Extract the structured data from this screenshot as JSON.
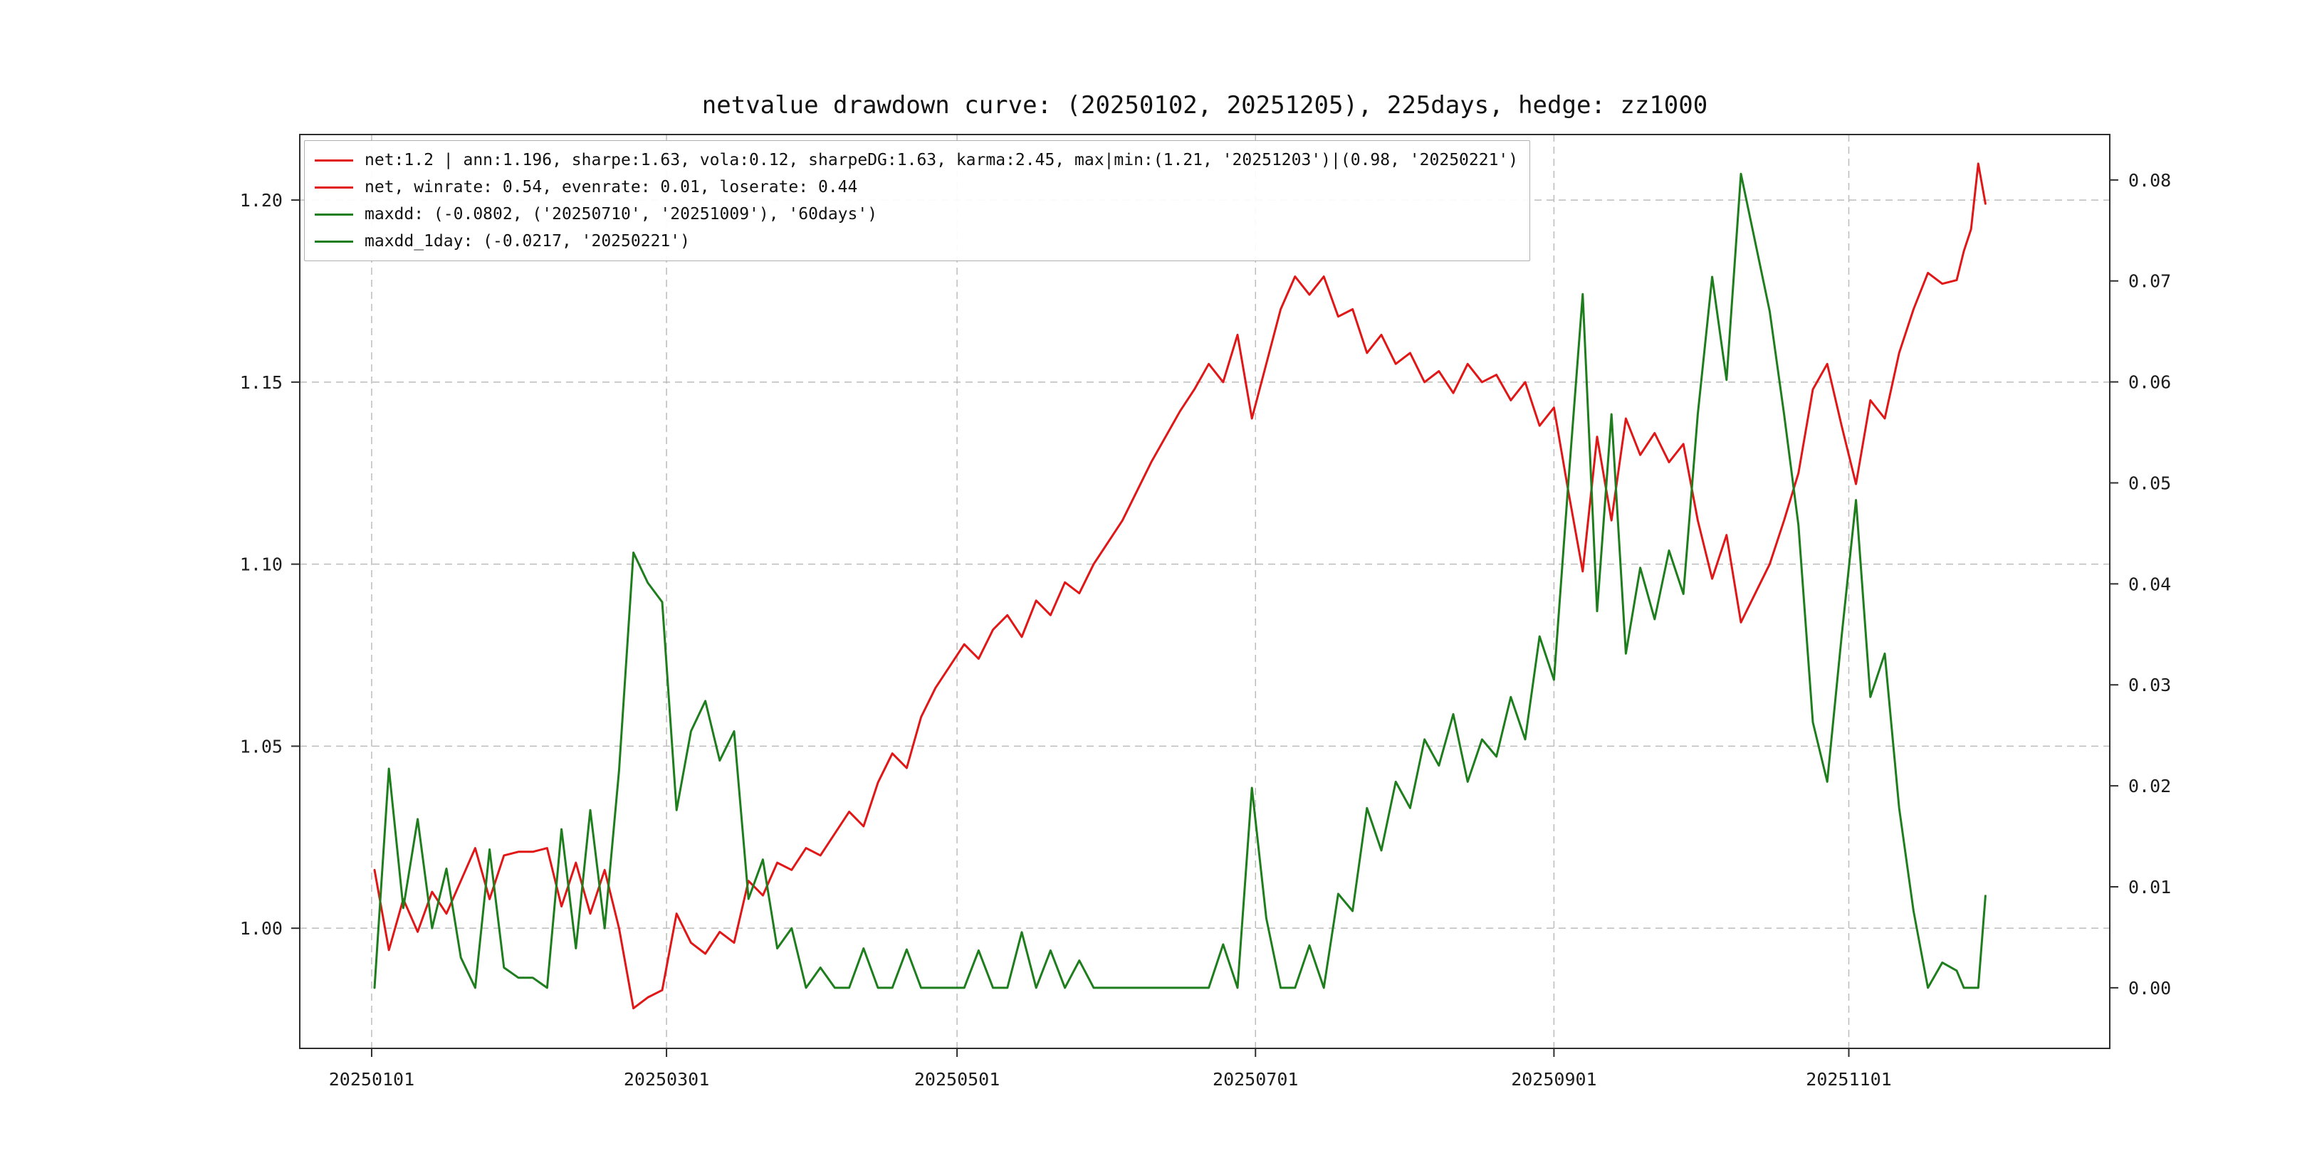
{
  "figure": {
    "title": "netvalue drawdown curve: (20250102, 20251205), 225days, hedge: zz1000",
    "background": "#ffffff"
  },
  "legend": {
    "entries": [
      {
        "label": "net:1.2 | ann:1.196, sharpe:1.63, vola:0.12, sharpeDG:1.63, karma:2.45, max|min:(1.21, '20251203')|(0.98, '20250221')",
        "color": "#e11717"
      },
      {
        "label": "net, winrate: 0.54, evenrate: 0.01, loserate: 0.44",
        "color": "#e11717"
      },
      {
        "label": "maxdd: (-0.0802, ('20250710', '20251009'), '60days')",
        "color": "#1e7e1e"
      },
      {
        "label": "maxdd_1day: (-0.0217, '20250221')",
        "color": "#1e7e1e"
      }
    ]
  },
  "chart_data": {
    "type": "line",
    "title": "netvalue drawdown curve: (20250102, 20251205), 225days, hedge: zz1000",
    "start_date": "20250102",
    "end_date": "20251205",
    "total_trading_days": 225,
    "hedge": "zz1000",
    "grid": "dashed",
    "legend_position": "upper-left",
    "x_axis": {
      "tick_labels": [
        "20250101",
        "20250301",
        "20250501",
        "20250701",
        "20250901",
        "20251101"
      ],
      "tick_days": [
        -0.4,
        40.6,
        81,
        122.5,
        164,
        205
      ]
    },
    "left_axis": {
      "ticks": [
        1.0,
        1.05,
        1.1,
        1.15,
        1.2
      ],
      "tick_labels": [
        "1.00",
        "1.05",
        "1.10",
        "1.15",
        "1.20"
      ],
      "range": [
        0.967,
        1.218
      ]
    },
    "right_axis": {
      "ticks": [
        0.0,
        0.01,
        0.02,
        0.03,
        0.04,
        0.05,
        0.06,
        0.07,
        0.08
      ],
      "tick_labels": [
        "0.00",
        "0.01",
        "0.02",
        "0.03",
        "0.04",
        "0.05",
        "0.06",
        "0.07",
        "0.08"
      ],
      "range": [
        -0.006,
        0.0845
      ]
    },
    "series": [
      {
        "name": "net",
        "axis": "left",
        "color": "#e11717",
        "stats": {
          "net": 1.2,
          "ann": 1.196,
          "sharpe": 1.63,
          "vola": 0.12,
          "sharpeDG": 1.63,
          "karma": 2.45,
          "max": [
            1.21,
            "20251203"
          ],
          "min": [
            0.98,
            "20250221"
          ],
          "winrate": 0.54,
          "evenrate": 0.01,
          "loserate": 0.44
        },
        "points": [
          [
            0,
            1.016
          ],
          [
            2,
            0.994
          ],
          [
            4,
            1.008
          ],
          [
            6,
            0.999
          ],
          [
            8,
            1.01
          ],
          [
            10,
            1.004
          ],
          [
            12,
            1.013
          ],
          [
            14,
            1.022
          ],
          [
            16,
            1.008
          ],
          [
            18,
            1.02
          ],
          [
            20,
            1.021
          ],
          [
            22,
            1.021
          ],
          [
            24,
            1.022
          ],
          [
            26,
            1.006
          ],
          [
            28,
            1.018
          ],
          [
            30,
            1.004
          ],
          [
            32,
            1.016
          ],
          [
            34,
            1.0
          ],
          [
            36,
            0.978
          ],
          [
            38,
            0.981
          ],
          [
            40,
            0.983
          ],
          [
            42,
            1.004
          ],
          [
            44,
            0.996
          ],
          [
            46,
            0.993
          ],
          [
            48,
            0.999
          ],
          [
            50,
            0.996
          ],
          [
            52,
            1.013
          ],
          [
            54,
            1.009
          ],
          [
            56,
            1.018
          ],
          [
            58,
            1.016
          ],
          [
            60,
            1.022
          ],
          [
            62,
            1.02
          ],
          [
            64,
            1.026
          ],
          [
            66,
            1.032
          ],
          [
            68,
            1.028
          ],
          [
            70,
            1.04
          ],
          [
            72,
            1.048
          ],
          [
            74,
            1.044
          ],
          [
            76,
            1.058
          ],
          [
            78,
            1.066
          ],
          [
            80,
            1.072
          ],
          [
            82,
            1.078
          ],
          [
            84,
            1.074
          ],
          [
            86,
            1.082
          ],
          [
            88,
            1.086
          ],
          [
            90,
            1.08
          ],
          [
            92,
            1.09
          ],
          [
            94,
            1.086
          ],
          [
            96,
            1.095
          ],
          [
            98,
            1.092
          ],
          [
            100,
            1.1
          ],
          [
            102,
            1.106
          ],
          [
            104,
            1.112
          ],
          [
            106,
            1.12
          ],
          [
            108,
            1.128
          ],
          [
            110,
            1.135
          ],
          [
            112,
            1.142
          ],
          [
            114,
            1.148
          ],
          [
            116,
            1.155
          ],
          [
            118,
            1.15
          ],
          [
            120,
            1.163
          ],
          [
            122,
            1.14
          ],
          [
            124,
            1.155
          ],
          [
            126,
            1.17
          ],
          [
            128,
            1.179
          ],
          [
            130,
            1.174
          ],
          [
            132,
            1.179
          ],
          [
            134,
            1.168
          ],
          [
            136,
            1.17
          ],
          [
            138,
            1.158
          ],
          [
            140,
            1.163
          ],
          [
            142,
            1.155
          ],
          [
            144,
            1.158
          ],
          [
            146,
            1.15
          ],
          [
            148,
            1.153
          ],
          [
            150,
            1.147
          ],
          [
            152,
            1.155
          ],
          [
            154,
            1.15
          ],
          [
            156,
            1.152
          ],
          [
            158,
            1.145
          ],
          [
            160,
            1.15
          ],
          [
            162,
            1.138
          ],
          [
            164,
            1.143
          ],
          [
            166,
            1.12
          ],
          [
            168,
            1.098
          ],
          [
            170,
            1.135
          ],
          [
            172,
            1.112
          ],
          [
            174,
            1.14
          ],
          [
            176,
            1.13
          ],
          [
            178,
            1.136
          ],
          [
            180,
            1.128
          ],
          [
            182,
            1.133
          ],
          [
            184,
            1.112
          ],
          [
            186,
            1.096
          ],
          [
            188,
            1.108
          ],
          [
            190,
            1.084
          ],
          [
            192,
            1.092
          ],
          [
            194,
            1.1
          ],
          [
            196,
            1.112
          ],
          [
            198,
            1.125
          ],
          [
            200,
            1.148
          ],
          [
            202,
            1.155
          ],
          [
            204,
            1.138
          ],
          [
            206,
            1.122
          ],
          [
            208,
            1.145
          ],
          [
            210,
            1.14
          ],
          [
            212,
            1.158
          ],
          [
            214,
            1.17
          ],
          [
            216,
            1.18
          ],
          [
            218,
            1.177
          ],
          [
            220,
            1.178
          ],
          [
            221,
            1.186
          ],
          [
            222,
            1.192
          ],
          [
            223,
            1.21
          ],
          [
            224,
            1.199
          ]
        ]
      },
      {
        "name": "maxdd",
        "axis": "right",
        "color": "#1e7e1e",
        "stats": {
          "maxdd": -0.0802,
          "maxdd_window": [
            "20250710",
            "20251009"
          ],
          "maxdd_duration": "60days",
          "maxdd_1day": -0.0217,
          "maxdd_1day_date": "20250221"
        },
        "points": [
          [
            0,
            0.0
          ],
          [
            2,
            0.0217
          ],
          [
            4,
            0.0079
          ],
          [
            6,
            0.0167
          ],
          [
            8,
            0.0059
          ],
          [
            10,
            0.0118
          ],
          [
            12,
            0.003
          ],
          [
            14,
            0.0
          ],
          [
            16,
            0.0137
          ],
          [
            18,
            0.002
          ],
          [
            20,
            0.001
          ],
          [
            22,
            0.001
          ],
          [
            24,
            0.0
          ],
          [
            26,
            0.0157
          ],
          [
            28,
            0.0039
          ],
          [
            30,
            0.0176
          ],
          [
            32,
            0.0059
          ],
          [
            34,
            0.0215
          ],
          [
            36,
            0.0431
          ],
          [
            38,
            0.0401
          ],
          [
            40,
            0.0382
          ],
          [
            42,
            0.0176
          ],
          [
            44,
            0.0254
          ],
          [
            46,
            0.0284
          ],
          [
            48,
            0.0225
          ],
          [
            50,
            0.0254
          ],
          [
            52,
            0.0088
          ],
          [
            54,
            0.0127
          ],
          [
            56,
            0.0039
          ],
          [
            58,
            0.0059
          ],
          [
            60,
            0.0
          ],
          [
            62,
            0.002
          ],
          [
            64,
            0.0
          ],
          [
            66,
            0.0
          ],
          [
            68,
            0.0039
          ],
          [
            70,
            0.0
          ],
          [
            72,
            0.0
          ],
          [
            74,
            0.0038
          ],
          [
            76,
            0.0
          ],
          [
            78,
            0.0
          ],
          [
            80,
            0.0
          ],
          [
            82,
            0.0
          ],
          [
            84,
            0.0037
          ],
          [
            86,
            0.0
          ],
          [
            88,
            0.0
          ],
          [
            90,
            0.0055
          ],
          [
            92,
            0.0
          ],
          [
            94,
            0.0037
          ],
          [
            96,
            0.0
          ],
          [
            98,
            0.0027
          ],
          [
            100,
            0.0
          ],
          [
            102,
            0.0
          ],
          [
            104,
            0.0
          ],
          [
            106,
            0.0
          ],
          [
            108,
            0.0
          ],
          [
            110,
            0.0
          ],
          [
            112,
            0.0
          ],
          [
            114,
            0.0
          ],
          [
            116,
            0.0
          ],
          [
            118,
            0.0043
          ],
          [
            120,
            0.0
          ],
          [
            122,
            0.0198
          ],
          [
            124,
            0.0069
          ],
          [
            126,
            0.0
          ],
          [
            128,
            0.0
          ],
          [
            130,
            0.0042
          ],
          [
            132,
            0.0
          ],
          [
            134,
            0.0093
          ],
          [
            136,
            0.0076
          ],
          [
            138,
            0.0178
          ],
          [
            140,
            0.0136
          ],
          [
            142,
            0.0204
          ],
          [
            144,
            0.0178
          ],
          [
            146,
            0.0246
          ],
          [
            148,
            0.022
          ],
          [
            150,
            0.0271
          ],
          [
            152,
            0.0204
          ],
          [
            154,
            0.0246
          ],
          [
            156,
            0.0229
          ],
          [
            158,
            0.0288
          ],
          [
            160,
            0.0246
          ],
          [
            162,
            0.0348
          ],
          [
            164,
            0.0305
          ],
          [
            166,
            0.05
          ],
          [
            168,
            0.0687
          ],
          [
            170,
            0.0373
          ],
          [
            172,
            0.0568
          ],
          [
            174,
            0.0331
          ],
          [
            176,
            0.0416
          ],
          [
            178,
            0.0365
          ],
          [
            180,
            0.0433
          ],
          [
            182,
            0.039
          ],
          [
            184,
            0.0568
          ],
          [
            186,
            0.0704
          ],
          [
            188,
            0.0602
          ],
          [
            190,
            0.0806
          ],
          [
            192,
            0.0738
          ],
          [
            194,
            0.067
          ],
          [
            196,
            0.0568
          ],
          [
            198,
            0.0458
          ],
          [
            200,
            0.0263
          ],
          [
            202,
            0.0204
          ],
          [
            204,
            0.0348
          ],
          [
            206,
            0.0483
          ],
          [
            208,
            0.0288
          ],
          [
            210,
            0.0331
          ],
          [
            212,
            0.0178
          ],
          [
            214,
            0.0076
          ],
          [
            216,
            0.0
          ],
          [
            218,
            0.0025
          ],
          [
            220,
            0.0017
          ],
          [
            221,
            0.0
          ],
          [
            222,
            0.0
          ],
          [
            223,
            0.0
          ],
          [
            224,
            0.0091
          ]
        ]
      }
    ]
  }
}
